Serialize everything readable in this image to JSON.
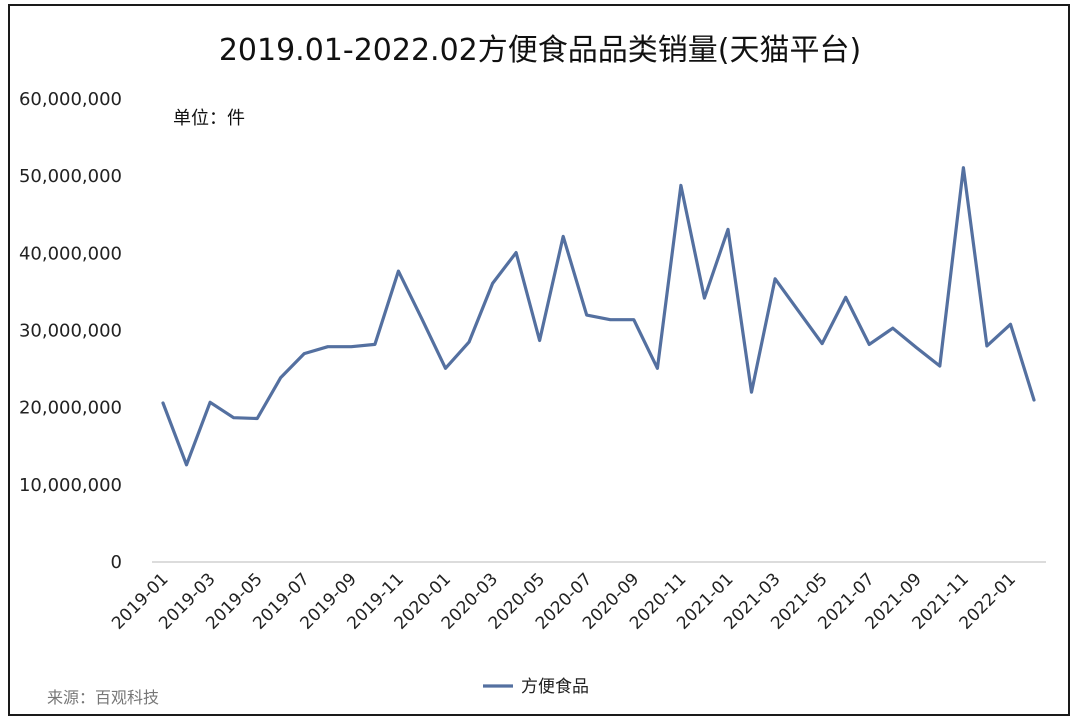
{
  "source_note": "来源：百观科技",
  "chart_data": {
    "type": "line",
    "title": "2019.01-2022.02方便食品品类销量(天猫平台)",
    "unit_label": "单位：件",
    "xlabel": "",
    "ylabel": "",
    "ylim": [
      0,
      60000000
    ],
    "y_ticks": [
      0,
      10000000,
      20000000,
      30000000,
      40000000,
      50000000,
      60000000
    ],
    "y_tick_labels": [
      "0",
      "10,000,000",
      "20,000,000",
      "30,000,000",
      "40,000,000",
      "50,000,000",
      "60,000,000"
    ],
    "x_tick_labels": [
      "2019-01",
      "2019-03",
      "2019-05",
      "2019-07",
      "2019-09",
      "2019-11",
      "2020-01",
      "2020-03",
      "2020-05",
      "2020-07",
      "2020-09",
      "2020-11",
      "2021-01",
      "2021-03",
      "2021-05",
      "2021-07",
      "2021-09",
      "2021-11",
      "2022-01"
    ],
    "x": [
      "2019-01",
      "2019-02",
      "2019-03",
      "2019-04",
      "2019-05",
      "2019-06",
      "2019-07",
      "2019-08",
      "2019-09",
      "2019-10",
      "2019-11",
      "2019-12",
      "2020-01",
      "2020-02",
      "2020-03",
      "2020-04",
      "2020-05",
      "2020-06",
      "2020-07",
      "2020-08",
      "2020-09",
      "2020-10",
      "2020-11",
      "2020-12",
      "2021-01",
      "2021-02",
      "2021-03",
      "2021-04",
      "2021-05",
      "2021-06",
      "2021-07",
      "2021-08",
      "2021-09",
      "2021-10",
      "2021-11",
      "2021-12",
      "2022-01",
      "2022-02"
    ],
    "series": [
      {
        "name": "方便食品",
        "color": "#5470a0",
        "values": [
          20600000,
          12600000,
          20700000,
          18700000,
          18600000,
          23900000,
          27000000,
          27900000,
          27900000,
          28200000,
          37700000,
          31500000,
          25100000,
          28500000,
          36100000,
          40100000,
          28700000,
          42200000,
          32000000,
          31400000,
          31400000,
          25100000,
          48800000,
          34200000,
          43100000,
          22000000,
          36700000,
          32500000,
          28300000,
          34300000,
          28200000,
          30300000,
          27800000,
          25400000,
          51100000,
          28000000,
          30800000,
          21000000
        ]
      }
    ],
    "grid": false,
    "legend_position": "bottom"
  }
}
